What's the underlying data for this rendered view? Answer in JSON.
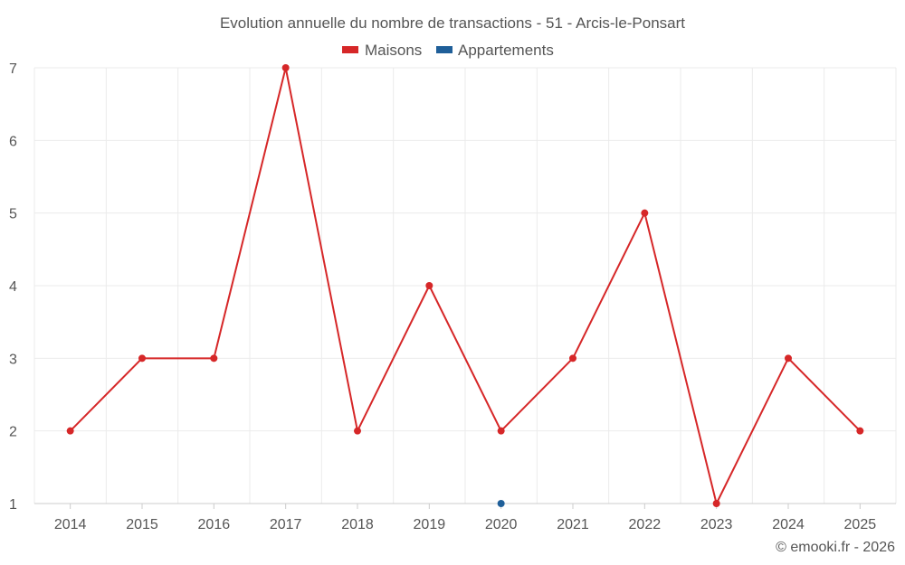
{
  "chart_data": {
    "type": "line",
    "title": "Evolution annuelle du nombre de transactions - 51 - Arcis-le-Ponsart",
    "categories": [
      "2014",
      "2015",
      "2016",
      "2017",
      "2018",
      "2019",
      "2020",
      "2021",
      "2022",
      "2023",
      "2024",
      "2025"
    ],
    "series": [
      {
        "name": "Maisons",
        "color": "#d62728",
        "values": [
          2,
          3,
          3,
          7,
          2,
          4,
          2,
          3,
          5,
          1,
          3,
          2
        ]
      },
      {
        "name": "Appartements",
        "color": "#1f5f99",
        "values": [
          null,
          null,
          null,
          null,
          null,
          null,
          1,
          null,
          null,
          null,
          null,
          null
        ]
      }
    ],
    "ylim": [
      1,
      7
    ],
    "yticks": [
      "1",
      "2",
      "3",
      "4",
      "5",
      "6",
      "7"
    ],
    "xlabel": "",
    "ylabel": "",
    "grid": true,
    "legend_position": "top-center"
  },
  "credit": "© emooki.fr - 2026"
}
